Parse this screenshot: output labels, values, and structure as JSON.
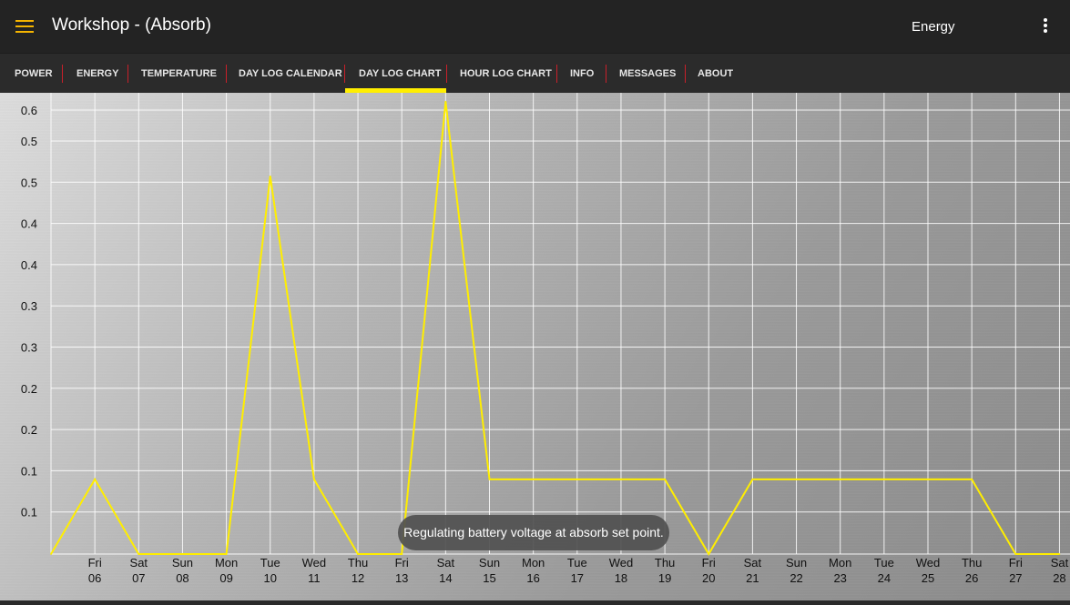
{
  "header": {
    "menu_icon": "hamburger-menu-icon",
    "title": "Workshop - (Absorb)",
    "mode": "Energy",
    "overflow_icon": "more-vert-icon"
  },
  "tabs": [
    "POWER",
    "ENERGY",
    "TEMPERATURE",
    "DAY LOG CALENDAR",
    "DAY LOG CHART",
    "HOUR LOG CHART",
    "INFO",
    "MESSAGES",
    "ABOUT"
  ],
  "active_tab": "DAY LOG CHART",
  "colors": {
    "accent": "#ffee00",
    "menu_icon": "#f5b400",
    "separator": "#c8202a"
  },
  "toast": "Regulating battery voltage at absorb set point.",
  "chart_data": {
    "type": "line",
    "ytick_labels": [
      "0.6",
      "0.5",
      "0.5",
      "0.4",
      "0.4",
      "0.3",
      "0.3",
      "0.2",
      "0.2",
      "0.1",
      "0.1"
    ],
    "x_labels": [
      [
        "",
        ""
      ],
      [
        "Fri",
        "06"
      ],
      [
        "Sat",
        "07"
      ],
      [
        "Sun",
        "08"
      ],
      [
        "Mon",
        "09"
      ],
      [
        "Tue",
        "10"
      ],
      [
        "Wed",
        "11"
      ],
      [
        "Thu",
        "12"
      ],
      [
        "Fri",
        "13"
      ],
      [
        "Sat",
        "14"
      ],
      [
        "Sun",
        "15"
      ],
      [
        "Mon",
        "16"
      ],
      [
        "Tue",
        "17"
      ],
      [
        "Wed",
        "18"
      ],
      [
        "Thu",
        "19"
      ],
      [
        "Fri",
        "20"
      ],
      [
        "Sat",
        "21"
      ],
      [
        "Sun",
        "22"
      ],
      [
        "Mon",
        "23"
      ],
      [
        "Tue",
        "24"
      ],
      [
        "Wed",
        "25"
      ],
      [
        "Thu",
        "26"
      ],
      [
        "Fri",
        "27"
      ],
      [
        "Sat",
        "28"
      ]
    ],
    "series": [
      {
        "color": "#ffee00",
        "values": [
          0,
          0.09,
          0,
          0,
          0,
          0.455,
          0.09,
          0,
          0,
          0.545,
          0.09,
          0.09,
          0.09,
          0.09,
          0.09,
          0,
          0.09,
          0.09,
          0.09,
          0.09,
          0.09,
          0.09,
          0,
          0
        ]
      }
    ],
    "ylim": [
      0,
      0.55
    ],
    "grid": true
  }
}
